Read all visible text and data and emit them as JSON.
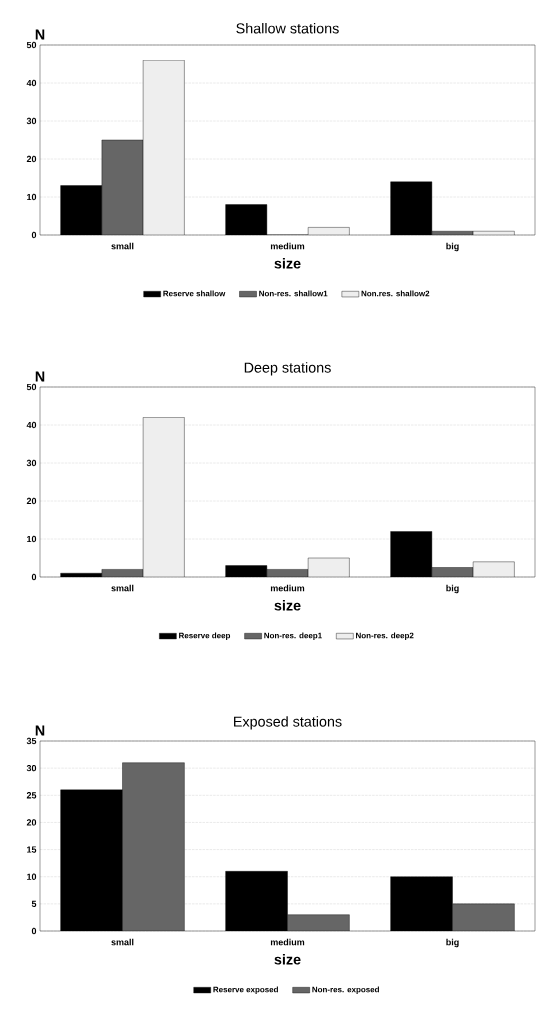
{
  "chart_data": [
    {
      "type": "bar",
      "title": "Shallow stations",
      "xlabel": "size",
      "ylabel": "N",
      "categories": [
        "small",
        "medium",
        "big"
      ],
      "series": [
        {
          "name": "Reserve shallow",
          "color": "#000000",
          "values": [
            13,
            8,
            14
          ]
        },
        {
          "name": "Non-res. shallow1",
          "color": "#666666",
          "values": [
            25,
            0,
            1
          ]
        },
        {
          "name": "Non.res. shallow2",
          "color": "#eeeeee",
          "values": [
            46,
            2,
            1
          ]
        }
      ],
      "ylim": [
        0,
        50
      ],
      "yticks": [
        0,
        10,
        20,
        30,
        40,
        50
      ],
      "grid": "y",
      "legend": "bottom"
    },
    {
      "type": "bar",
      "title": "Deep stations",
      "xlabel": "size",
      "ylabel": "N",
      "categories": [
        "small",
        "medium",
        "big"
      ],
      "series": [
        {
          "name": "Reserve deep",
          "color": "#000000",
          "values": [
            1,
            3,
            12
          ]
        },
        {
          "name": "Non-res. deep1",
          "color": "#666666",
          "values": [
            2,
            2,
            2.5
          ]
        },
        {
          "name": "Non-res. deep2",
          "color": "#eeeeee",
          "values": [
            42,
            5,
            4
          ]
        }
      ],
      "ylim": [
        0,
        50
      ],
      "yticks": [
        0,
        10,
        20,
        30,
        40,
        50
      ],
      "grid": "y",
      "legend": "bottom"
    },
    {
      "type": "bar",
      "title": "Exposed stations",
      "xlabel": "size",
      "ylabel": "N",
      "categories": [
        "small",
        "medium",
        "big"
      ],
      "series": [
        {
          "name": "Reserve exposed",
          "color": "#000000",
          "values": [
            26,
            11,
            10
          ]
        },
        {
          "name": "Non-res. exposed",
          "color": "#666666",
          "values": [
            31,
            3,
            5
          ]
        }
      ],
      "ylim": [
        0,
        35
      ],
      "yticks": [
        0,
        5,
        10,
        15,
        20,
        25,
        30,
        35
      ],
      "grid": "y",
      "legend": "bottom"
    }
  ]
}
